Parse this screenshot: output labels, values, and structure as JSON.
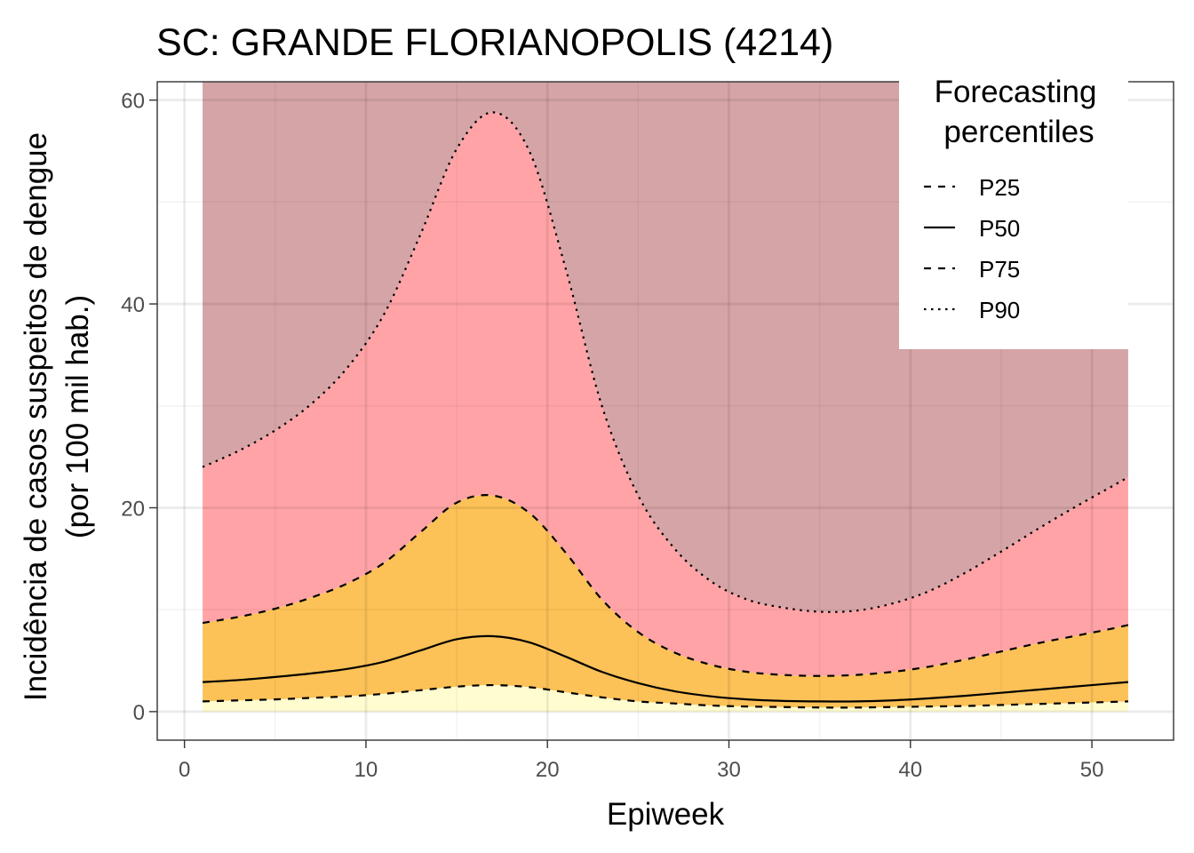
{
  "chart_data": {
    "type": "area",
    "title": "SC: GRANDE FLORIANOPOLIS (4214)",
    "xlabel": "Epiweek",
    "ylabel_lines": [
      "Incidência de casos suspeitos de dengue",
      "(por 100 mil hab.)"
    ],
    "xlim": [
      -1.5,
      54.5
    ],
    "ylim": [
      -2.8,
      61.8
    ],
    "x_ticks": [
      0,
      10,
      20,
      30,
      40,
      50
    ],
    "y_ticks": [
      0,
      20,
      40,
      60
    ],
    "grid": true,
    "legend": {
      "title_lines": [
        "Forecasting",
        "percentiles"
      ],
      "position": "top-right",
      "entries": [
        {
          "label": "P25",
          "linetype": "dashed"
        },
        {
          "label": "P50",
          "linetype": "solid"
        },
        {
          "label": "P75",
          "linetype": "dashed"
        },
        {
          "label": "P90",
          "linetype": "dotted"
        }
      ]
    },
    "x": [
      1,
      3,
      5,
      7,
      9,
      11,
      13,
      15,
      17,
      19,
      21,
      23,
      25,
      27,
      29,
      31,
      33,
      35,
      37,
      39,
      41,
      43,
      45,
      47,
      49,
      51,
      52
    ],
    "series": [
      {
        "name": "P25",
        "linetype": "dashed",
        "values": [
          1.0,
          1.1,
          1.2,
          1.35,
          1.5,
          1.75,
          2.1,
          2.45,
          2.6,
          2.4,
          1.9,
          1.4,
          1.0,
          0.8,
          0.6,
          0.5,
          0.45,
          0.4,
          0.4,
          0.45,
          0.5,
          0.55,
          0.65,
          0.75,
          0.85,
          0.95,
          1.0
        ]
      },
      {
        "name": "P50",
        "linetype": "solid",
        "values": [
          2.9,
          3.1,
          3.4,
          3.75,
          4.2,
          4.9,
          6.0,
          7.1,
          7.4,
          6.8,
          5.4,
          3.9,
          2.8,
          2.0,
          1.5,
          1.2,
          1.05,
          1.0,
          1.0,
          1.1,
          1.3,
          1.55,
          1.85,
          2.15,
          2.45,
          2.75,
          2.9
        ]
      },
      {
        "name": "P75",
        "linetype": "dashed",
        "values": [
          8.7,
          9.3,
          10.1,
          11.2,
          12.6,
          14.6,
          17.6,
          20.5,
          21.2,
          19.5,
          15.6,
          11.0,
          7.8,
          5.8,
          4.6,
          3.9,
          3.6,
          3.5,
          3.6,
          3.9,
          4.4,
          5.1,
          5.9,
          6.7,
          7.4,
          8.1,
          8.5
        ]
      },
      {
        "name": "P90",
        "linetype": "dotted",
        "values": [
          24.0,
          25.6,
          27.6,
          30.2,
          33.8,
          39.0,
          46.8,
          55.2,
          58.8,
          55.0,
          43.5,
          30.0,
          21.2,
          16.0,
          12.8,
          11.0,
          10.2,
          9.8,
          9.9,
          10.6,
          11.8,
          13.6,
          15.7,
          17.9,
          20.0,
          22.0,
          23.0
        ]
      }
    ],
    "band_top": 61.8,
    "band_colors": [
      "#fffdd0",
      "#fcc157",
      "#ffa3a6",
      "#d5a4a6"
    ],
    "line_color": "#000000"
  }
}
